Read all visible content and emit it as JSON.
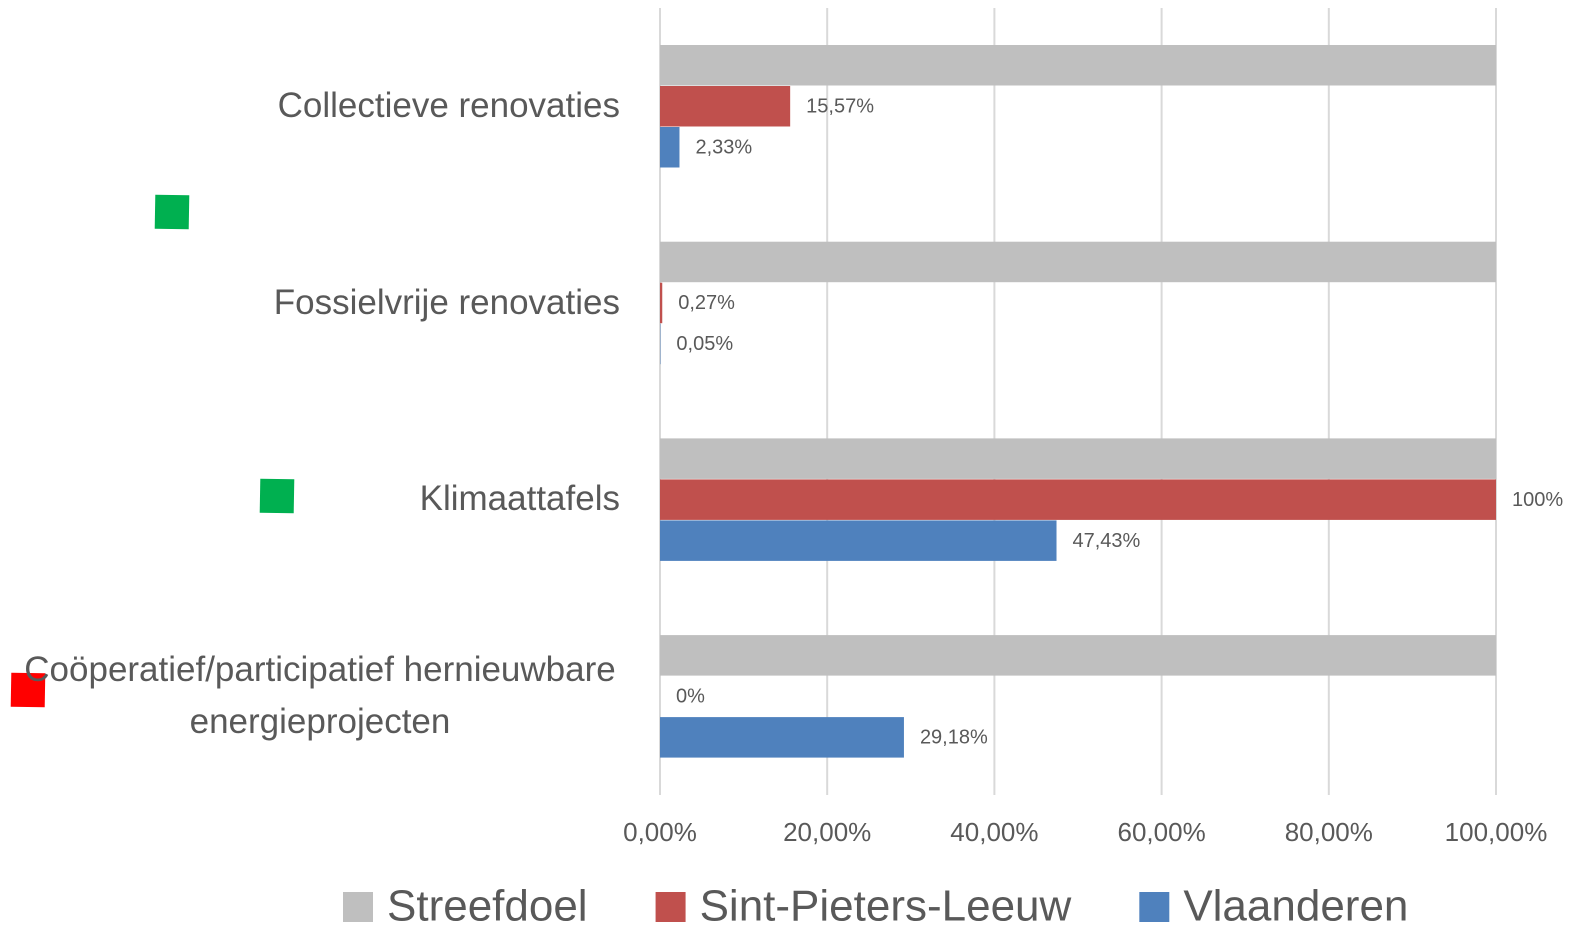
{
  "chart_data": {
    "type": "hbar",
    "categories": [
      "Collectieve renovaties",
      "Fossielvrije renovaties",
      "Klimaattafels",
      "Coöperatief/participatief hernieuwbare energieprojecten"
    ],
    "series": [
      {
        "name": "Streefdoel",
        "color": "#bfbfbf",
        "values": [
          100,
          100,
          100,
          100
        ]
      },
      {
        "name": "Sint-Pieters-Leeuw",
        "color": "#c0504d",
        "values": [
          15.57,
          0.27,
          100,
          0
        ],
        "value_labels": [
          "15,57%",
          "0,27%",
          "100%",
          "0%"
        ]
      },
      {
        "name": "Vlaanderen",
        "color": "#4f81bd",
        "values": [
          2.33,
          0.05,
          47.43,
          29.18
        ],
        "value_labels": [
          "2,33%",
          "0,05%",
          "47,43%",
          "29,18%"
        ]
      }
    ],
    "xlim": [
      0,
      100
    ],
    "xticks": [
      {
        "value": 0,
        "label": "0,00%"
      },
      {
        "value": 20,
        "label": "20,00%"
      },
      {
        "value": 40,
        "label": "40,00%"
      },
      {
        "value": 60,
        "label": "60,00%"
      },
      {
        "value": 80,
        "label": "80,00%"
      },
      {
        "value": 100,
        "label": "100,00%"
      }
    ],
    "grid": true,
    "legend": "bottom"
  }
}
